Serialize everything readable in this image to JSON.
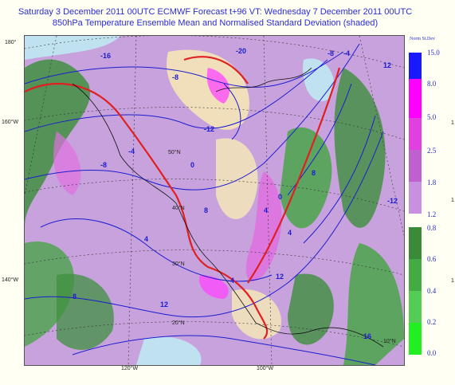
{
  "header": {
    "line1": "Saturday 3 December 2011 00UTC ECMWF Forecast t+96  VT: Wednesday 7 December 2011 00UTC",
    "line2": "850hPa Temperature Ensemble Mean and Normalised Standard Deviation (shaded)"
  },
  "map": {
    "lat_labels": [
      "180°",
      "160°W",
      "140°W"
    ],
    "lon_labels": [
      "120°W",
      "100°W"
    ],
    "grid_labels": [
      "50°N",
      "40°N",
      "30°N",
      "20°N",
      "10°N"
    ],
    "contour_labels": [
      "-16",
      "-12",
      "-12",
      "-8",
      "-8",
      "-4",
      "-4",
      "0",
      "0",
      "4",
      "4",
      "4",
      "8",
      "8",
      "8",
      "12",
      "12",
      "12",
      "16",
      "-20",
      "-8",
      "-4"
    ]
  },
  "legend": {
    "title": "Norm St.Dev",
    "top_labels": [
      "15.0",
      "8.0",
      "5.0",
      "2.5",
      "1.8",
      "1.2"
    ],
    "top_colors": [
      "#1a1aff",
      "#ff00ff",
      "#e040e0",
      "#c060d0",
      "#c890e0"
    ],
    "bottom_labels": [
      "0.8",
      "0.6",
      "0.4",
      "0.2",
      "0.0"
    ],
    "bottom_colors": [
      "#3a8a3a",
      "#44aa44",
      "#55cc55",
      "#22ee22"
    ]
  },
  "right_edge_labels": [
    "1",
    "1",
    "1"
  ]
}
